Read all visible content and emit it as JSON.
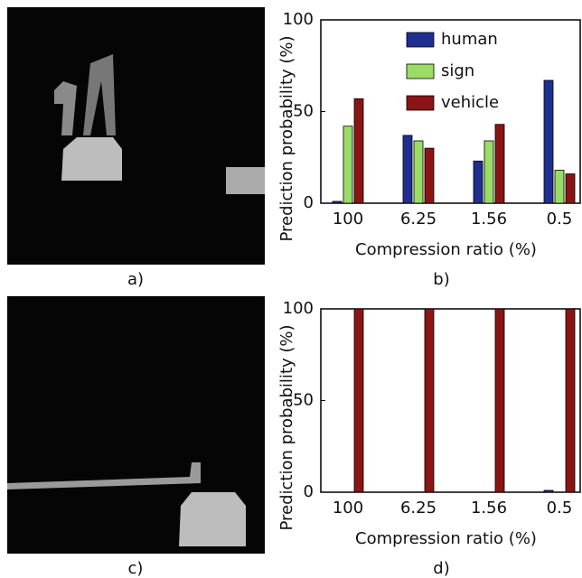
{
  "captions": [
    "a)",
    "c)"
  ],
  "chart_data": [
    {
      "type": "bar",
      "caption": "b)",
      "x_label": "Compression ratio (%)",
      "y_label": "Prediction probability (%)",
      "categories": [
        "100",
        "6.25",
        "1.56",
        "0.5"
      ],
      "series": [
        {
          "name": "human",
          "color": "#1f2f8f",
          "values": [
            1,
            37,
            23,
            67
          ]
        },
        {
          "name": "sign",
          "color": "#99dd66",
          "values": [
            42,
            34,
            34,
            18
          ]
        },
        {
          "name": "vehicle",
          "color": "#8b1414",
          "values": [
            57,
            30,
            43,
            16
          ]
        }
      ],
      "ylim": [
        0,
        100
      ],
      "yticks": [
        0,
        50,
        100
      ],
      "legend": "top",
      "grid": false
    },
    {
      "type": "bar",
      "caption": "d)",
      "x_label": "Compression ratio (%)",
      "y_label": "Prediction probability (%)",
      "categories": [
        "100",
        "6.25",
        "1.56",
        "0.5"
      ],
      "series": [
        {
          "color": "#1f2f8f",
          "values": [
            0,
            0,
            0,
            1
          ]
        },
        {
          "color": "#99dd66",
          "values": [
            0,
            0,
            0,
            0
          ]
        },
        {
          "color": "#8b1414",
          "values": [
            100,
            100,
            100,
            100
          ]
        }
      ],
      "ylim": [
        0,
        100
      ],
      "yticks": [
        0,
        50,
        100
      ],
      "grid": false
    }
  ]
}
